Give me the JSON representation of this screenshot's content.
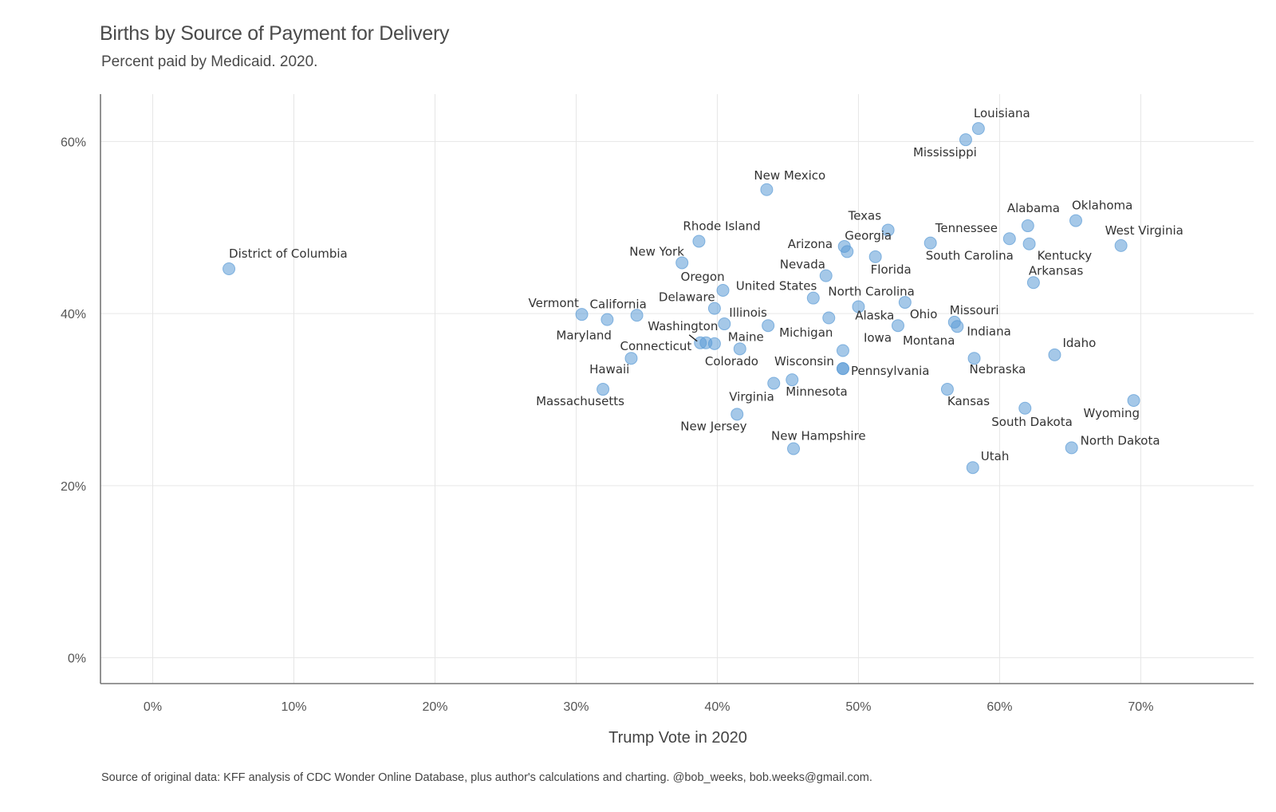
{
  "chart_data": {
    "type": "scatter",
    "title": "Births by Source of Payment for Delivery",
    "subtitle": "Percent paid by Medicaid. 2020.",
    "xlabel": "Trump Vote in 2020",
    "ylabel": "",
    "caption": "Source of original data: KFF analysis of CDC Wonder Online Database, plus author's calculations and charting. @bob_weeks, bob.weeks@gmail.com.",
    "xlim": [
      -3.7,
      78
    ],
    "ylim": [
      -3,
      65.5
    ],
    "x_ticks": [
      0,
      10,
      20,
      30,
      40,
      50,
      60,
      70
    ],
    "x_tick_labels": [
      "0%",
      "10%",
      "20%",
      "30%",
      "40%",
      "50%",
      "60%",
      "70%"
    ],
    "y_ticks": [
      0,
      20,
      40,
      60
    ],
    "y_tick_labels": [
      "0%",
      "20%",
      "40%",
      "60%"
    ],
    "grid": true,
    "legend": "none",
    "color": "#5b9bd5",
    "points": [
      {
        "label": "District of Columbia",
        "x": 5.4,
        "y": 45.2,
        "ldx": 0,
        "ldy": -14,
        "anchor": "start",
        "lx0": -42
      },
      {
        "label": "Louisiana",
        "x": 58.5,
        "y": 61.5,
        "ldx": -6,
        "ldy": -14,
        "anchor": "start"
      },
      {
        "label": "Mississippi",
        "x": 57.6,
        "y": 60.2,
        "ldx": -66,
        "ldy": 21,
        "anchor": "start"
      },
      {
        "label": "New Mexico",
        "x": 43.5,
        "y": 54.4,
        "ldx": -16,
        "ldy": -13,
        "anchor": "start"
      },
      {
        "label": "Texas",
        "x": 52.1,
        "y": 49.7,
        "ldx": -50,
        "ldy": -13,
        "anchor": "start"
      },
      {
        "label": "Alabama",
        "x": 62.0,
        "y": 50.2,
        "ldx": -26,
        "ldy": -17,
        "anchor": "start"
      },
      {
        "label": "Oklahoma",
        "x": 65.4,
        "y": 50.8,
        "ldx": -5,
        "ldy": -14,
        "anchor": "start"
      },
      {
        "label": "Tennessee",
        "x": 60.7,
        "y": 48.7,
        "ldx": -93,
        "ldy": -8,
        "anchor": "start"
      },
      {
        "label": "West Virginia",
        "x": 68.6,
        "y": 47.9,
        "ldx": -20,
        "ldy": -14,
        "anchor": "start"
      },
      {
        "label": "Rhode Island",
        "x": 38.7,
        "y": 48.4,
        "ldx": -20,
        "ldy": -14,
        "anchor": "start"
      },
      {
        "label": "Arizona",
        "x": 49.0,
        "y": 47.8,
        "ldx": -71,
        "ldy": 2,
        "anchor": "start"
      },
      {
        "label": "Georgia",
        "x": 49.2,
        "y": 47.2,
        "ldx": -3,
        "ldy": -15,
        "anchor": "start"
      },
      {
        "label": "South Carolina",
        "x": 55.1,
        "y": 48.2,
        "ldx": -6,
        "ldy": 21,
        "anchor": "start"
      },
      {
        "label": "Kentucky",
        "x": 62.1,
        "y": 48.1,
        "ldx": 10,
        "ldy": 20,
        "anchor": "start"
      },
      {
        "label": "New York",
        "x": 37.5,
        "y": 45.9,
        "ldx": -66,
        "ldy": -9,
        "anchor": "start"
      },
      {
        "label": "Florida",
        "x": 51.2,
        "y": 46.6,
        "ldx": -6,
        "ldy": 21,
        "anchor": "start"
      },
      {
        "label": "Nevada",
        "x": 47.7,
        "y": 44.4,
        "ldx": -58,
        "ldy": -9,
        "anchor": "start"
      },
      {
        "label": "Arkansas",
        "x": 62.4,
        "y": 43.6,
        "ldx": -6,
        "ldy": -10,
        "anchor": "start"
      },
      {
        "label": "Oregon",
        "x": 40.4,
        "y": 42.7,
        "ldx": -53,
        "ldy": -12,
        "anchor": "start"
      },
      {
        "label": "United States",
        "x": 46.8,
        "y": 41.8,
        "ldx": -97,
        "ldy": -10,
        "anchor": "start"
      },
      {
        "label": "North Carolina",
        "x": 50.0,
        "y": 40.8,
        "ldx": -38,
        "ldy": -14,
        "anchor": "start"
      },
      {
        "label": "Ohio",
        "x": 53.3,
        "y": 41.3,
        "ldx": 6,
        "ldy": 20,
        "anchor": "start"
      },
      {
        "label": "Delaware",
        "x": 39.8,
        "y": 40.6,
        "ldx": -70,
        "ldy": -9,
        "anchor": "start"
      },
      {
        "label": "Vermont",
        "x": 30.4,
        "y": 39.9,
        "ldx": -67,
        "ldy": -9,
        "anchor": "start"
      },
      {
        "label": "California",
        "x": 34.3,
        "y": 39.8,
        "ldx": -59,
        "ldy": -9,
        "anchor": "start"
      },
      {
        "label": "Maryland",
        "x": 32.2,
        "y": 39.3,
        "ldx": -64,
        "ldy": 25,
        "anchor": "start"
      },
      {
        "label": "Illinois",
        "x": 40.5,
        "y": 38.8,
        "ldx": 6,
        "ldy": -9,
        "anchor": "start"
      },
      {
        "label": "Michigan",
        "x": 43.6,
        "y": 38.6,
        "ldx": 14,
        "ldy": 14,
        "anchor": "start"
      },
      {
        "label": "Alaska",
        "x": 47.9,
        "y": 39.5,
        "ldx": 33,
        "ldy": 2,
        "anchor": "start"
      },
      {
        "label": "Missouri",
        "x": 56.8,
        "y": 39.0,
        "ldx": -6,
        "ldy": -10,
        "anchor": "start"
      },
      {
        "label": "Indiana",
        "x": 57.0,
        "y": 38.5,
        "ldx": 12,
        "ldy": 11,
        "anchor": "start"
      },
      {
        "label": "Montana",
        "x": 52.8,
        "y": 38.6,
        "ldx": 6,
        "ldy": 24,
        "anchor": "start"
      },
      {
        "label": "Washington",
        "x": 38.8,
        "y": 36.6,
        "ldx": -66,
        "ldy": -16,
        "anchor": "start",
        "leader": true
      },
      {
        "label": "",
        "x": 39.2,
        "y": 36.6
      },
      {
        "label": "Maine",
        "x": 41.6,
        "y": 35.9,
        "ldx": -15,
        "ldy": -10,
        "anchor": "start"
      },
      {
        "label": "Connecticut",
        "x": 33.9,
        "y": 34.8,
        "ldx": -14,
        "ldy": -10,
        "anchor": "start"
      },
      {
        "label": "Colorado",
        "x": 39.8,
        "y": 36.5,
        "ldx": -12,
        "ldy": 27,
        "anchor": "start",
        "lx0": 0
      },
      {
        "label": "Iowa",
        "x": 48.9,
        "y": 35.7,
        "ldx": 26,
        "ldy": -11,
        "anchor": "start"
      },
      {
        "label": "Wisconsin",
        "x": 48.9,
        "y": 33.6,
        "ldx": -86,
        "ldy": -4,
        "anchor": "start"
      },
      {
        "label": "Pennsylvania",
        "x": 48.9,
        "y": 33.6,
        "ldx": 10,
        "ldy": 8,
        "anchor": "start"
      },
      {
        "label": "Nebraska",
        "x": 58.2,
        "y": 34.8,
        "ldx": -6,
        "ldy": 19,
        "anchor": "start"
      },
      {
        "label": "Idaho",
        "x": 63.9,
        "y": 35.2,
        "ldx": 10,
        "ldy": -10,
        "anchor": "start"
      },
      {
        "label": "Hawaii",
        "x": 31.9,
        "y": 31.2,
        "ldx": -17,
        "ldy": -20,
        "anchor": "start"
      },
      {
        "label": "Massachusetts",
        "x": 31.9,
        "y": 31.2,
        "ldx": -84,
        "ldy": 20,
        "anchor": "start",
        "hidePoint": true
      },
      {
        "label": "Minnesota",
        "x": 45.3,
        "y": 32.3,
        "ldx": -8,
        "ldy": 20,
        "anchor": "start"
      },
      {
        "label": "",
        "x": 44.0,
        "y": 31.9
      },
      {
        "label": "Kansas",
        "x": 56.3,
        "y": 31.2,
        "ldx": 0,
        "ldy": 20,
        "anchor": "start"
      },
      {
        "label": "Virginia",
        "x": 41.4,
        "y": 28.3,
        "ldx": -10,
        "ldy": -17,
        "anchor": "start"
      },
      {
        "label": "New Jersey",
        "x": 41.4,
        "y": 28.3,
        "ldx": -71,
        "ldy": 20,
        "anchor": "start",
        "hidePoint": true
      },
      {
        "label": "South Dakota",
        "x": 61.8,
        "y": 29.0,
        "ldx": -42,
        "ldy": 22,
        "anchor": "start"
      },
      {
        "label": "Wyoming",
        "x": 69.5,
        "y": 29.9,
        "ldx": -63,
        "ldy": 21,
        "anchor": "start"
      },
      {
        "label": "New Hampshire",
        "x": 45.4,
        "y": 24.3,
        "ldx": -28,
        "ldy": -11,
        "anchor": "start"
      },
      {
        "label": "North Dakota",
        "x": 65.1,
        "y": 24.4,
        "ldx": 11,
        "ldy": -4,
        "anchor": "start"
      },
      {
        "label": "Utah",
        "x": 58.1,
        "y": 22.1,
        "ldx": 10,
        "ldy": -9,
        "anchor": "start"
      }
    ]
  }
}
